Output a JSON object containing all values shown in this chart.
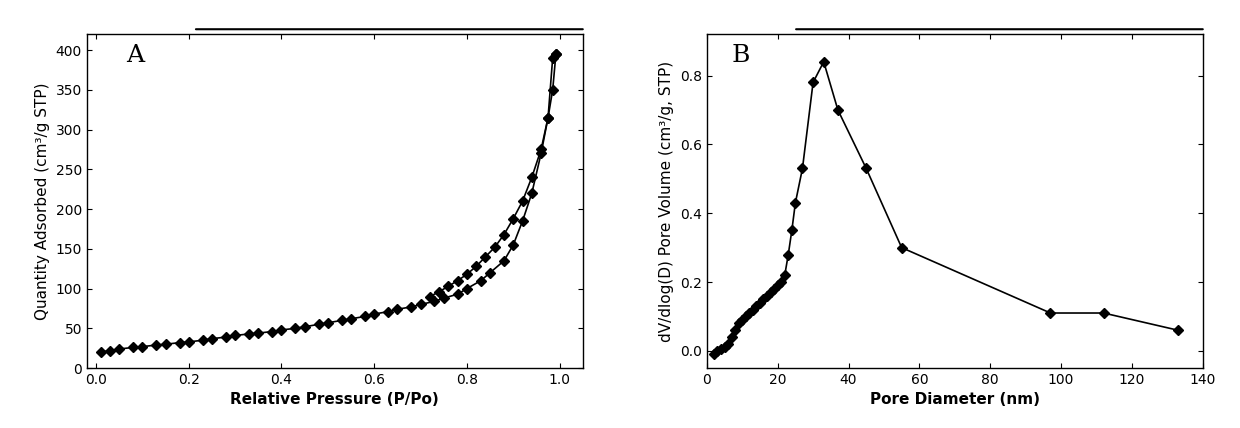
{
  "plot_A": {
    "label": "A",
    "xlabel": "Relative Pressure (P/Po)",
    "ylabel": "Quantity Adsorbed (cm³/g STP)",
    "xlim": [
      -0.02,
      1.05
    ],
    "ylim": [
      0,
      420
    ],
    "xticks": [
      0.0,
      0.2,
      0.4,
      0.6,
      0.8,
      1.0
    ],
    "yticks": [
      0,
      50,
      100,
      150,
      200,
      250,
      300,
      350,
      400
    ],
    "adsorption_x": [
      0.01,
      0.03,
      0.05,
      0.08,
      0.1,
      0.13,
      0.15,
      0.18,
      0.2,
      0.23,
      0.25,
      0.28,
      0.3,
      0.33,
      0.35,
      0.38,
      0.4,
      0.43,
      0.45,
      0.48,
      0.5,
      0.53,
      0.55,
      0.58,
      0.6,
      0.63,
      0.65,
      0.68,
      0.7,
      0.73,
      0.75,
      0.78,
      0.8,
      0.83,
      0.85,
      0.88,
      0.9,
      0.92,
      0.94,
      0.96,
      0.975,
      0.985,
      0.992
    ],
    "adsorption_y": [
      20,
      22,
      24,
      26,
      27,
      29,
      30,
      32,
      33,
      35,
      37,
      39,
      41,
      43,
      44,
      46,
      48,
      50,
      52,
      55,
      57,
      60,
      62,
      65,
      68,
      71,
      74,
      77,
      80,
      84,
      88,
      93,
      100,
      110,
      120,
      135,
      155,
      185,
      220,
      270,
      315,
      390,
      395
    ],
    "desorption_x": [
      0.992,
      0.985,
      0.975,
      0.96,
      0.94,
      0.92,
      0.9,
      0.88,
      0.86,
      0.84,
      0.82,
      0.8,
      0.78,
      0.76,
      0.74,
      0.72
    ],
    "desorption_y": [
      395,
      350,
      315,
      275,
      240,
      210,
      188,
      168,
      152,
      140,
      128,
      118,
      110,
      103,
      96,
      90
    ]
  },
  "plot_B": {
    "label": "B",
    "xlabel": "Pore Diameter (nm)",
    "ylabel": "dV/dlog(D) Pore Volume (cm³/g, STP)",
    "xlim": [
      0,
      140
    ],
    "ylim": [
      -0.05,
      0.92
    ],
    "xticks": [
      0,
      20,
      40,
      60,
      80,
      100,
      120,
      140
    ],
    "yticks": [
      0.0,
      0.2,
      0.4,
      0.6,
      0.8
    ],
    "x": [
      2,
      3,
      4,
      5,
      6,
      7,
      8,
      9,
      10,
      11,
      12,
      13,
      14,
      15,
      16,
      17,
      18,
      19,
      20,
      21,
      22,
      23,
      24,
      25,
      27,
      30,
      33,
      37,
      45,
      55,
      97,
      112,
      133
    ],
    "y": [
      -0.01,
      0.0,
      0.005,
      0.01,
      0.02,
      0.04,
      0.06,
      0.08,
      0.09,
      0.1,
      0.11,
      0.12,
      0.13,
      0.14,
      0.15,
      0.16,
      0.17,
      0.18,
      0.19,
      0.2,
      0.22,
      0.28,
      0.35,
      0.43,
      0.53,
      0.78,
      0.84,
      0.7,
      0.53,
      0.3,
      0.11,
      0.11,
      0.06
    ]
  },
  "marker": "D",
  "markersize": 5,
  "linewidth": 1.2,
  "color": "black",
  "bg_color": "white",
  "label_fontsize": 11,
  "tick_fontsize": 10,
  "panel_label_fontsize": 18
}
